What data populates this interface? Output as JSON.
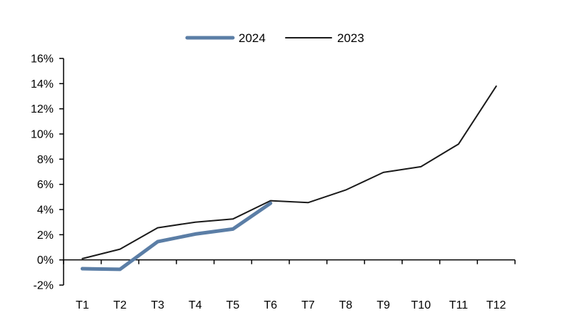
{
  "chart_data": {
    "type": "line",
    "title": "",
    "xlabel": "",
    "ylabel": "",
    "categories": [
      "T1",
      "T2",
      "T3",
      "T4",
      "T5",
      "T6",
      "T7",
      "T8",
      "T9",
      "T10",
      "T11",
      "T12"
    ],
    "ylim": [
      -2,
      16
    ],
    "yticks": [
      -2,
      0,
      2,
      4,
      6,
      8,
      10,
      12,
      14,
      16
    ],
    "ytick_labels": [
      "-2%",
      "0%",
      "2%",
      "4%",
      "6%",
      "8%",
      "10%",
      "12%",
      "14%",
      "16%"
    ],
    "grid": false,
    "legend_position": "top-center",
    "series": [
      {
        "name": "2024",
        "color": "#5b7ea6",
        "values": [
          -0.7,
          -0.75,
          1.45,
          2.05,
          2.45,
          4.5,
          null,
          null,
          null,
          null,
          null,
          null
        ]
      },
      {
        "name": "2023",
        "color": "#1a1a1a",
        "values": [
          0.1,
          0.85,
          2.55,
          3.0,
          3.25,
          4.7,
          4.55,
          5.55,
          6.95,
          7.4,
          9.2,
          13.8
        ]
      }
    ]
  }
}
